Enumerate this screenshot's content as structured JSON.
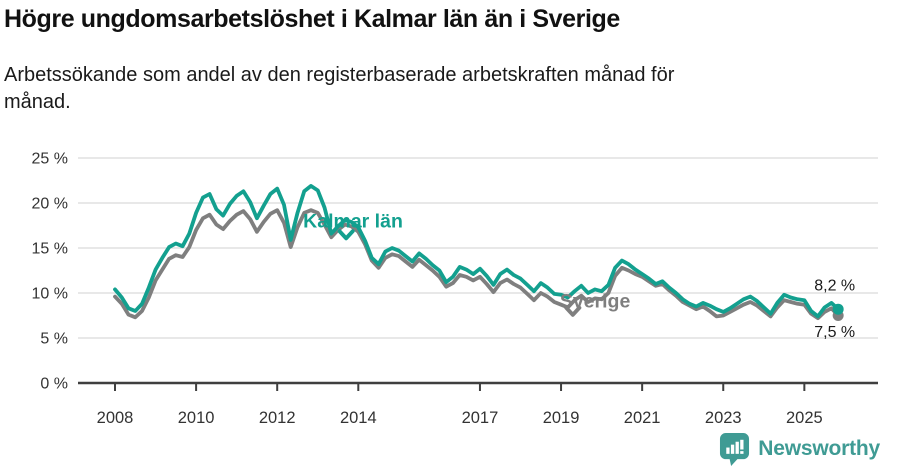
{
  "header": {
    "title": "Högre ungdomsarbetslöshet i Kalmar län än i Sverige",
    "subtitle": "Arbetssökande som andel av den registerbaserade arbetskraften månad för\nmånad."
  },
  "footer": {
    "brand": "Newsworthy",
    "logo_icon": "bar-chart-marker-icon",
    "brand_color": "#3f9b94"
  },
  "colors": {
    "kalmar_line": "#13a08f",
    "sverige_line": "#7f7f7f",
    "gridline": "#d9d9d9",
    "axis": "#3f3f3f",
    "tick_label": "#333333",
    "end_label": "#1a1a1a"
  },
  "chart_data": {
    "type": "line",
    "title": "Högre ungdomsarbetslöshet i Kalmar län än i Sverige",
    "subtitle": "Arbetssökande som andel av den registerbaserade arbetskraften månad för månad.",
    "xlabel": "",
    "ylabel": "",
    "ylim": [
      0,
      25
    ],
    "grid": "horizontal",
    "legend": "inline-labels",
    "x_start_year": 2008.0,
    "x_step_years": 0.16667,
    "yticks": [
      0,
      5,
      10,
      15,
      20,
      25
    ],
    "ytick_suffix": " %",
    "xticks": [
      2008,
      2010,
      2012,
      2014,
      2017,
      2019,
      2021,
      2023,
      2025
    ],
    "series": [
      {
        "name": "Kalmar län",
        "color": "#13a08f",
        "end_value_label": "8,2 %",
        "values": [
          10.4,
          9.5,
          8.3,
          8.0,
          8.8,
          10.6,
          12.6,
          13.9,
          15.1,
          15.5,
          15.2,
          16.6,
          18.9,
          20.6,
          21.0,
          19.3,
          18.6,
          19.9,
          20.8,
          21.3,
          20.1,
          18.3,
          19.7,
          21.0,
          21.6,
          19.8,
          15.9,
          18.9,
          21.3,
          21.9,
          21.4,
          19.5,
          16.6,
          17.4,
          18.1,
          17.9,
          17.3,
          15.8,
          13.9,
          13.2,
          14.6,
          15.0,
          14.7,
          14.1,
          13.5,
          14.4,
          13.8,
          13.1,
          12.5,
          11.2,
          11.8,
          12.9,
          12.6,
          12.1,
          12.7,
          11.9,
          10.9,
          12.1,
          12.6,
          12.0,
          11.6,
          10.9,
          10.2,
          11.1,
          10.6,
          9.9,
          9.8,
          9.5,
          10.2,
          10.8,
          10.0,
          10.4,
          10.2,
          10.9,
          12.8,
          13.6,
          13.2,
          12.6,
          12.1,
          11.6,
          11.0,
          11.3,
          10.6,
          10.0,
          9.3,
          8.8,
          8.5,
          8.9,
          8.6,
          8.2,
          7.9,
          8.3,
          8.8,
          9.3,
          9.6,
          9.1,
          8.4,
          7.7,
          8.9,
          9.8,
          9.5,
          9.3,
          9.2,
          8.0,
          7.4,
          8.4,
          8.9,
          8.2
        ]
      },
      {
        "name": "Sverige",
        "color": "#7f7f7f",
        "end_value_label": "7,5 %",
        "values": [
          9.6,
          8.8,
          7.6,
          7.3,
          8.0,
          9.5,
          11.4,
          12.6,
          13.8,
          14.2,
          14.0,
          15.1,
          17.0,
          18.3,
          18.7,
          17.6,
          17.1,
          18.0,
          18.7,
          19.1,
          18.2,
          16.8,
          17.9,
          18.8,
          19.2,
          17.8,
          15.1,
          17.3,
          18.9,
          19.2,
          18.9,
          17.6,
          16.2,
          17.0,
          17.6,
          17.4,
          16.8,
          15.4,
          13.6,
          12.8,
          13.9,
          14.3,
          14.1,
          13.5,
          12.9,
          13.7,
          13.1,
          12.5,
          11.8,
          10.7,
          11.1,
          12.0,
          11.8,
          11.4,
          11.8,
          11.0,
          10.1,
          11.1,
          11.5,
          11.0,
          10.6,
          9.9,
          9.2,
          10.0,
          9.6,
          9.0,
          8.7,
          8.4,
          9.2,
          9.7,
          9.0,
          9.4,
          9.3,
          10.0,
          11.9,
          12.8,
          12.5,
          12.1,
          11.8,
          11.3,
          10.8,
          11.0,
          10.3,
          9.7,
          9.0,
          8.6,
          8.2,
          8.5,
          8.0,
          7.4,
          7.5,
          7.9,
          8.3,
          8.7,
          9.0,
          8.6,
          8.0,
          7.4,
          8.4,
          9.2,
          9.0,
          8.8,
          8.7,
          7.7,
          7.2,
          7.9,
          8.3,
          7.5
        ]
      }
    ],
    "end_labels": [
      {
        "text": "8,2 %",
        "y_pct": 10.3
      },
      {
        "text": "7,5 %",
        "y_pct": 5.1
      }
    ],
    "annotations": [
      {
        "text": "Kalmar län",
        "color": "#13a08f",
        "x_year": 2012.64,
        "y_pct": 17.3,
        "arrow": {
          "x_year": 2013.7,
          "y_pct": 16.3
        }
      },
      {
        "text": "Sverige",
        "color": "#7f7f7f",
        "x_year": 2018.97,
        "y_pct": 8.4,
        "arrow": {
          "x_year": 2019.29,
          "y_pct": 7.8
        }
      }
    ]
  }
}
